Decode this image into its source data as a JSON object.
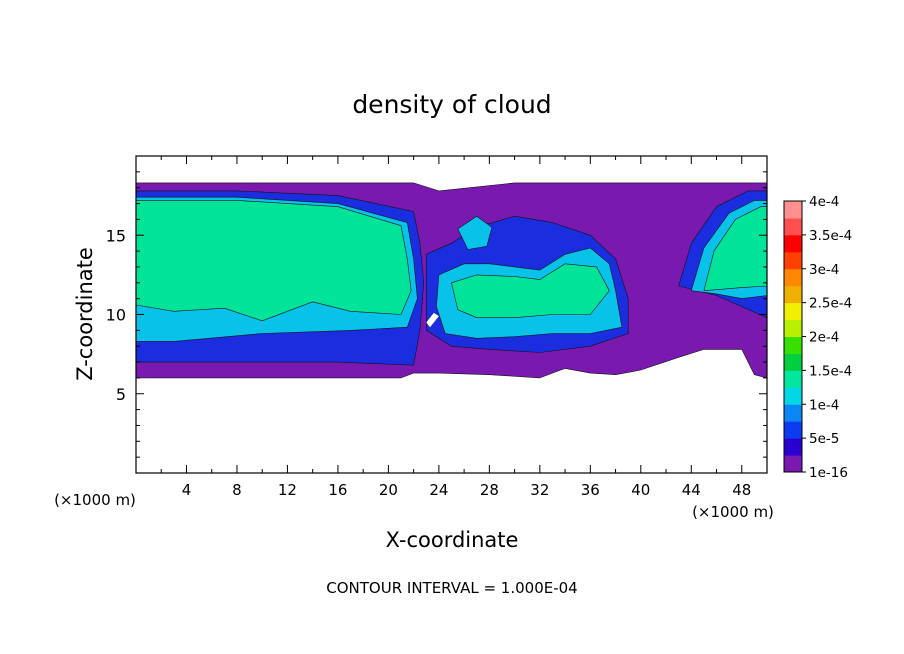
{
  "chart_data": {
    "type": "heatmap",
    "title": "density of cloud",
    "xlabel": "X-coordinate",
    "ylabel": "Z-coordinate",
    "x_unit_left": "(×1000 m)",
    "x_unit_right": "(×1000 m)",
    "footer": "CONTOUR INTERVAL = 1.000E-04",
    "xlim": [
      0,
      50
    ],
    "ylim": [
      0,
      20
    ],
    "x_ticks": [
      4,
      8,
      12,
      16,
      20,
      24,
      28,
      32,
      36,
      40,
      44,
      48
    ],
    "y_ticks": [
      5,
      10,
      15
    ],
    "colorbar": {
      "labels": [
        "1e-16",
        "5e-5",
        "1e-4",
        "1.5e-4",
        "2e-4",
        "2.5e-4",
        "3e-4",
        "3.5e-4",
        "4e-4"
      ],
      "colors": [
        "#7a19b0",
        "#2a00d0",
        "#0c3cf0",
        "#0a86f5",
        "#00d8e8",
        "#00e8a0",
        "#00d040",
        "#38e000",
        "#b8f000",
        "#f0f000",
        "#f0b000",
        "#ff8800",
        "#ff4000",
        "#ff0000",
        "#ff5050",
        "#ff9090"
      ]
    },
    "regions": [
      {
        "name": "cloud-layer",
        "color": "#7a19b0",
        "points": [
          [
            0,
            18.3
          ],
          [
            8,
            18.3
          ],
          [
            16,
            18.3
          ],
          [
            22,
            18.3
          ],
          [
            24,
            17.8
          ],
          [
            30,
            18.3
          ],
          [
            50,
            18.3
          ],
          [
            50,
            6.0
          ],
          [
            49,
            6.2
          ],
          [
            48,
            7.8
          ],
          [
            45,
            7.8
          ],
          [
            43,
            7.3
          ],
          [
            40,
            6.5
          ],
          [
            38,
            6.2
          ],
          [
            36,
            6.3
          ],
          [
            34,
            6.6
          ],
          [
            32,
            6.0
          ],
          [
            28,
            6.2
          ],
          [
            24,
            6.3
          ],
          [
            22,
            6.3
          ],
          [
            21,
            6.0
          ],
          [
            10,
            6.0
          ],
          [
            0,
            6.0
          ]
        ]
      },
      {
        "name": "blue-shell-left",
        "color": "#1a2ee0",
        "points": [
          [
            0,
            17.8
          ],
          [
            8,
            17.8
          ],
          [
            16,
            17.5
          ],
          [
            22,
            16.5
          ],
          [
            22.5,
            14.5
          ],
          [
            22.8,
            12
          ],
          [
            22.5,
            9
          ],
          [
            22,
            6.8
          ],
          [
            16,
            7.0
          ],
          [
            8,
            7.0
          ],
          [
            0,
            7.0
          ]
        ]
      },
      {
        "name": "blue-shell-center",
        "color": "#1a2ee0",
        "points": [
          [
            23,
            13.8
          ],
          [
            25,
            14.5
          ],
          [
            27,
            15.5
          ],
          [
            30,
            16.2
          ],
          [
            33,
            15.8
          ],
          [
            36,
            15.0
          ],
          [
            38,
            13.5
          ],
          [
            39,
            11.0
          ],
          [
            39,
            8.8
          ],
          [
            36,
            8.0
          ],
          [
            32,
            7.6
          ],
          [
            28,
            7.8
          ],
          [
            25,
            8.0
          ],
          [
            23,
            9.0
          ]
        ]
      },
      {
        "name": "blue-shell-right",
        "color": "#1a2ee0",
        "points": [
          [
            43,
            11.8
          ],
          [
            44,
            14.5
          ],
          [
            46,
            16.8
          ],
          [
            48.5,
            17.8
          ],
          [
            50,
            17.8
          ],
          [
            50,
            9.8
          ],
          [
            48,
            10.5
          ],
          [
            46,
            11.2
          ]
        ]
      },
      {
        "name": "cyan-left",
        "color": "#08c2ea",
        "points": [
          [
            0,
            17.4
          ],
          [
            8,
            17.4
          ],
          [
            16,
            17.0
          ],
          [
            21.5,
            15.8
          ],
          [
            22,
            13.5
          ],
          [
            22.3,
            11
          ],
          [
            21.5,
            9.2
          ],
          [
            17,
            9.0
          ],
          [
            10,
            8.8
          ],
          [
            3,
            8.3
          ],
          [
            0,
            8.3
          ]
        ]
      },
      {
        "name": "cyan-center",
        "color": "#08c2ea",
        "points": [
          [
            24,
            12.5
          ],
          [
            26,
            13.2
          ],
          [
            28,
            13.2
          ],
          [
            30,
            13.0
          ],
          [
            32,
            12.8
          ],
          [
            34,
            13.8
          ],
          [
            36,
            14.2
          ],
          [
            37.5,
            13.2
          ],
          [
            38,
            11.5
          ],
          [
            38.5,
            9.2
          ],
          [
            36,
            8.8
          ],
          [
            33,
            8.8
          ],
          [
            30,
            8.6
          ],
          [
            27,
            8.5
          ],
          [
            24.5,
            8.8
          ],
          [
            23.8,
            10.5
          ]
        ]
      },
      {
        "name": "cyan-right",
        "color": "#08c2ea",
        "points": [
          [
            44,
            11.5
          ],
          [
            45,
            14.2
          ],
          [
            47,
            16.4
          ],
          [
            49,
            17.2
          ],
          [
            50,
            17.2
          ],
          [
            50,
            11.2
          ],
          [
            48,
            11.0
          ],
          [
            46,
            11.3
          ]
        ]
      },
      {
        "name": "cyan-swirl",
        "color": "#08c2ea",
        "points": [
          [
            25.5,
            15.4
          ],
          [
            27,
            16.2
          ],
          [
            28.2,
            15.5
          ],
          [
            27.8,
            14.3
          ],
          [
            26.3,
            14.1
          ]
        ]
      },
      {
        "name": "green-left",
        "color": "#00e49a",
        "points": [
          [
            0,
            17.2
          ],
          [
            8,
            17.2
          ],
          [
            16,
            16.8
          ],
          [
            21,
            15.6
          ],
          [
            21.5,
            13.5
          ],
          [
            21.8,
            11.5
          ],
          [
            21,
            10.0
          ],
          [
            17,
            10.2
          ],
          [
            14,
            10.8
          ],
          [
            10,
            9.6
          ],
          [
            7,
            10.4
          ],
          [
            3,
            10.2
          ],
          [
            0,
            10.6
          ]
        ]
      },
      {
        "name": "green-center",
        "color": "#00e49a",
        "points": [
          [
            25,
            12.0
          ],
          [
            27,
            12.5
          ],
          [
            30,
            12.4
          ],
          [
            32,
            12.2
          ],
          [
            34,
            13.2
          ],
          [
            36.5,
            13.0
          ],
          [
            37.5,
            11.5
          ],
          [
            36,
            10.0
          ],
          [
            33,
            10.0
          ],
          [
            30,
            9.8
          ],
          [
            27,
            9.8
          ],
          [
            25.5,
            10.3
          ]
        ]
      },
      {
        "name": "green-right",
        "color": "#00e49a",
        "points": [
          [
            45,
            11.5
          ],
          [
            45.8,
            14.0
          ],
          [
            47.5,
            16.0
          ],
          [
            49.5,
            16.8
          ],
          [
            50,
            16.8
          ],
          [
            50,
            11.8
          ],
          [
            48,
            11.7
          ]
        ]
      },
      {
        "name": "clear-gap",
        "color": "#ffffff",
        "points": [
          [
            23.0,
            9.5
          ],
          [
            23.6,
            10.1
          ],
          [
            24.0,
            9.9
          ],
          [
            23.3,
            9.2
          ]
        ]
      }
    ]
  }
}
